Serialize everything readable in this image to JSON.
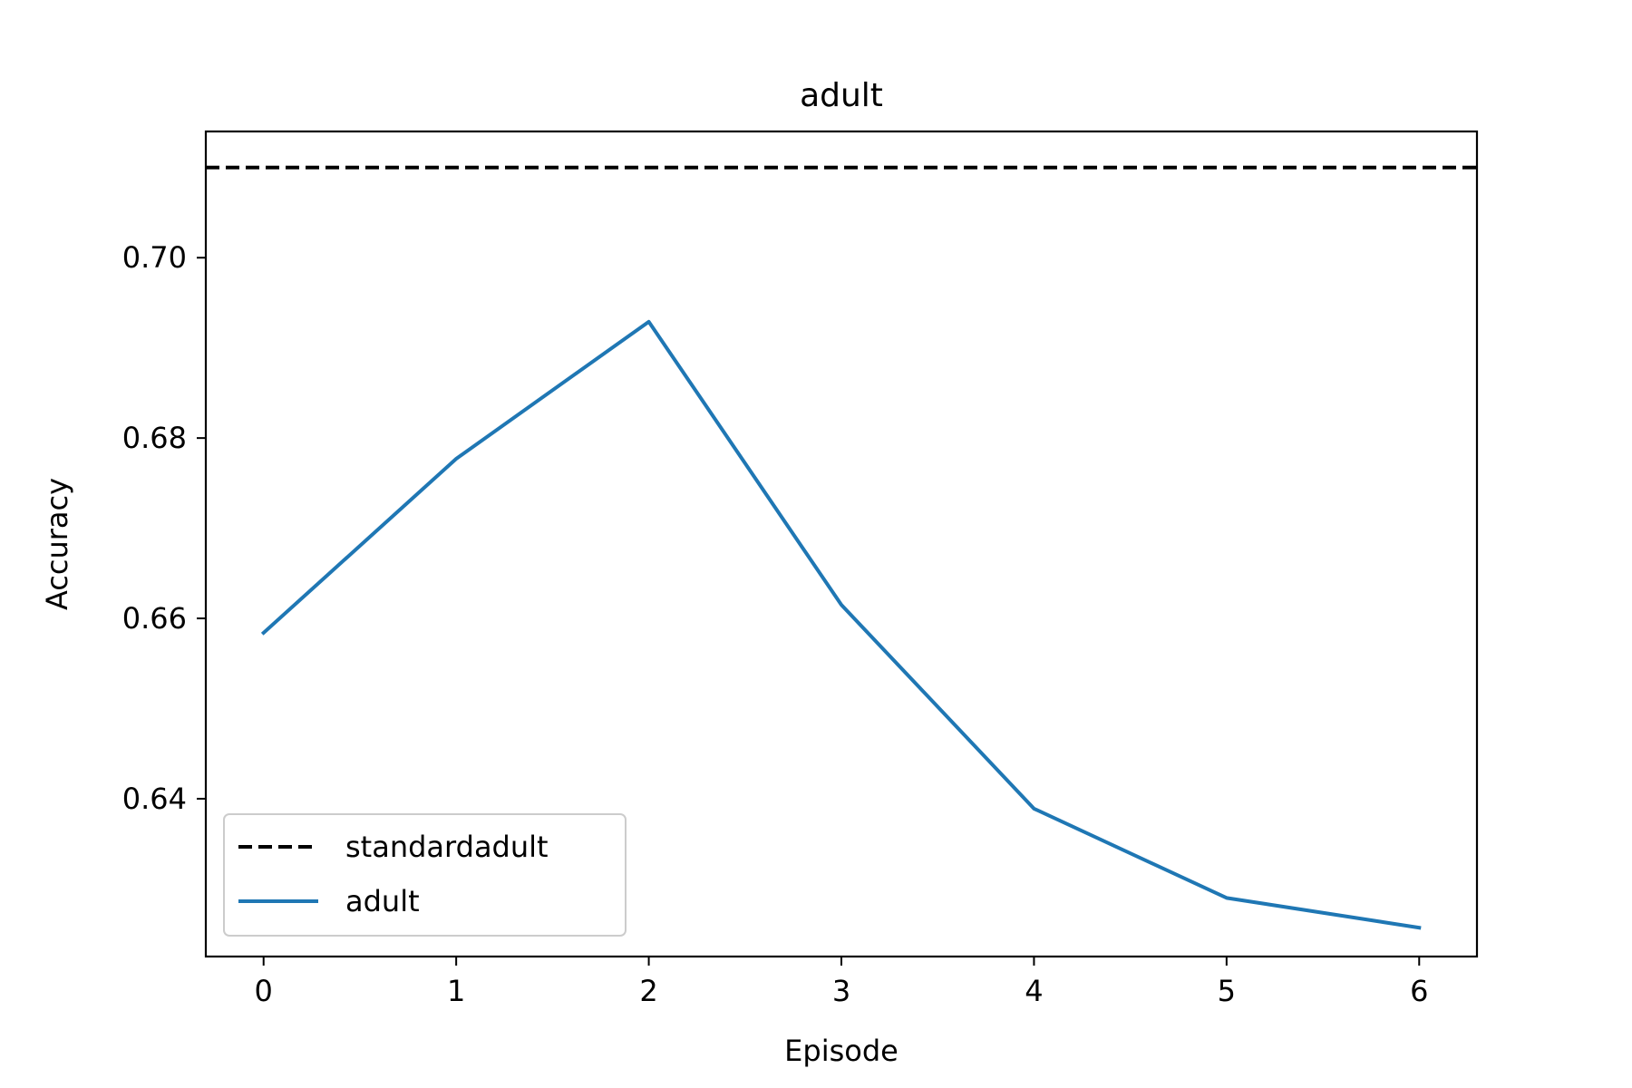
{
  "chart_data": {
    "type": "line",
    "title": "adult",
    "xlabel": "Episode",
    "ylabel": "Accuracy",
    "xlim": [
      -0.3,
      6.3
    ],
    "ylim": [
      0.6225,
      0.714
    ],
    "xticks": [
      0,
      1,
      2,
      3,
      4,
      5,
      6
    ],
    "yticks": [
      0.64,
      0.66,
      0.68,
      0.7
    ],
    "ytick_labels": [
      "0.64",
      "0.66",
      "0.68",
      "0.70"
    ],
    "grid": false,
    "legend_position": "lower-left",
    "series": [
      {
        "name": "standardadult",
        "kind": "hline",
        "y": 0.71,
        "color": "#000000",
        "style": "dashed"
      },
      {
        "name": "adult",
        "kind": "line",
        "x": [
          0,
          1,
          2,
          3,
          4,
          5,
          6
        ],
        "values": [
          0.6584,
          0.6777,
          0.6929,
          0.6615,
          0.6389,
          0.629,
          0.6257
        ],
        "color": "#1f77b4",
        "style": "solid"
      }
    ]
  }
}
